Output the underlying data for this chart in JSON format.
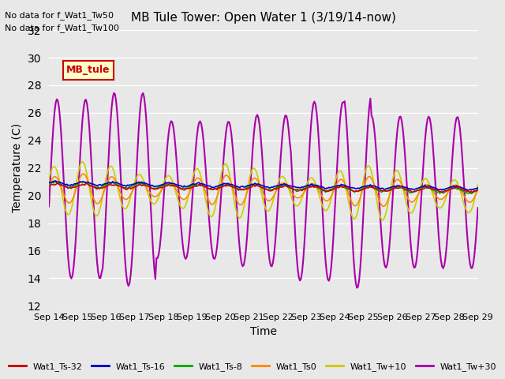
{
  "title": "MB Tule Tower: Open Water 1 (3/19/14-now)",
  "xlabel": "Time",
  "ylabel": "Temperature (C)",
  "bg_color": "#e8e8e8",
  "x_tick_labels": [
    "Sep 14",
    "Sep 15",
    "Sep 16",
    "Sep 17",
    "Sep 18",
    "Sep 19",
    "Sep 20",
    "Sep 21",
    "Sep 22",
    "Sep 23",
    "Sep 24",
    "Sep 25",
    "Sep 26",
    "Sep 27",
    "Sep 28",
    "Sep 29"
  ],
  "ylim": [
    12,
    32
  ],
  "yticks": [
    12,
    14,
    16,
    18,
    20,
    22,
    24,
    26,
    28,
    30,
    32
  ],
  "note1": "No data for f_Wat1_Tw50",
  "note2": "No data for f_Wat1_Tw100",
  "legend_box_label": "MB_tule",
  "series": {
    "Wat1_Ts-32": {
      "color": "#cc0000",
      "lw": 1.2
    },
    "Wat1_Ts-16": {
      "color": "#0000cc",
      "lw": 1.2
    },
    "Wat1_Ts-8": {
      "color": "#00aa00",
      "lw": 1.2
    },
    "Wat1_Ts0": {
      "color": "#ff8800",
      "lw": 1.2
    },
    "Wat1_Tw+10": {
      "color": "#cccc00",
      "lw": 1.2
    },
    "Wat1_Tw+30": {
      "color": "#aa00aa",
      "lw": 1.5
    }
  }
}
